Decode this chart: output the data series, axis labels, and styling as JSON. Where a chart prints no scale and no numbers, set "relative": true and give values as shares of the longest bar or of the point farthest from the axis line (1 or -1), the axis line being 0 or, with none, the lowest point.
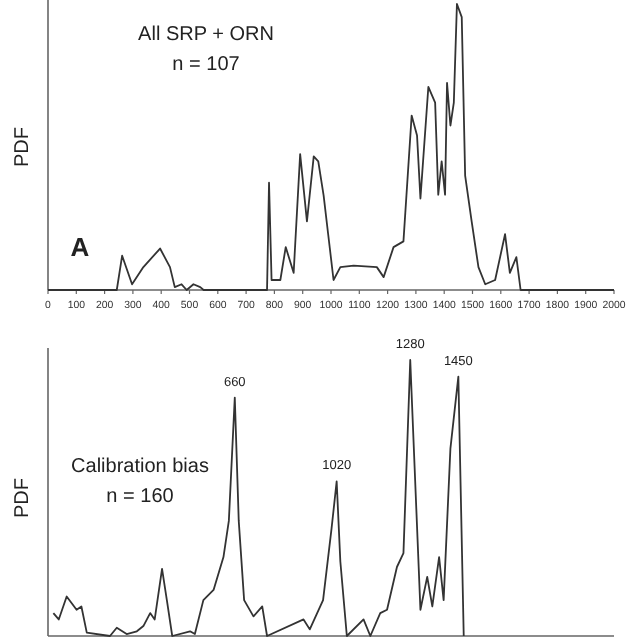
{
  "chart_data": [
    {
      "type": "line",
      "ylabel": "PDF",
      "relative": true,
      "xlim": [
        0,
        2000
      ],
      "xticks": [
        0,
        100,
        200,
        300,
        400,
        500,
        600,
        700,
        800,
        900,
        1000,
        1100,
        1200,
        1300,
        1400,
        1500,
        1600,
        1700,
        1800,
        1900,
        2000
      ],
      "annotations": [
        "All SRP + ORN",
        "n = 107",
        "A"
      ],
      "x": [
        0,
        243,
        262,
        297,
        337,
        396,
        431,
        448,
        472,
        490,
        514,
        538,
        550,
        774,
        781,
        790,
        821,
        840,
        868,
        891,
        915,
        939,
        955,
        974,
        990,
        1009,
        1033,
        1080,
        1162,
        1186,
        1221,
        1256,
        1285,
        1304,
        1316,
        1344,
        1368,
        1379,
        1391,
        1403,
        1410,
        1422,
        1434,
        1445,
        1462,
        1474,
        1497,
        1521,
        1545,
        1580,
        1615,
        1632,
        1655,
        1670,
        2000
      ],
      "series": [
        {
          "color": "#333333",
          "values": [
            0,
            0,
            0.12,
            0.02,
            0.08,
            0.145,
            0.08,
            0.01,
            0.02,
            0,
            0.02,
            0.01,
            0,
            0,
            0.375,
            0.035,
            0.035,
            0.15,
            0.06,
            0.475,
            0.24,
            0.467,
            0.45,
            0.33,
            0.195,
            0.035,
            0.08,
            0.085,
            0.08,
            0.045,
            0.15,
            0.17,
            0.61,
            0.54,
            0.32,
            0.71,
            0.655,
            0.333,
            0.45,
            0.333,
            0.724,
            0.575,
            0.655,
            1.0,
            0.954,
            0.4,
            0.24,
            0.08,
            0.02,
            0.035,
            0.195,
            0.06,
            0.115,
            0,
            0
          ]
        }
      ]
    },
    {
      "type": "line",
      "ylabel": "PDF",
      "relative": true,
      "xlim": [
        0,
        2000
      ],
      "tick_labels": false,
      "annotations": [
        "Calibration bias",
        "n = 160",
        {
          "text": "660",
          "x": 660,
          "y": 0.864
        },
        {
          "text": "1020",
          "x": 1020,
          "y": 0.56
        },
        {
          "text": "1280",
          "x": 1280,
          "y": 1.0
        },
        {
          "text": "1450",
          "x": 1450,
          "y": 0.94
        }
      ],
      "x": [
        19,
        38,
        66,
        101,
        118,
        137,
        219,
        243,
        278,
        314,
        337,
        361,
        377,
        403,
        420,
        439,
        502,
        519,
        549,
        585,
        620,
        639,
        660,
        674,
        693,
        726,
        757,
        774,
        903,
        925,
        972,
        1002,
        1020,
        1033,
        1056,
        1115,
        1139,
        1174,
        1198,
        1233,
        1256,
        1280,
        1316,
        1340,
        1358,
        1382,
        1398,
        1422,
        1450,
        1469
      ],
      "series": [
        {
          "color": "#333333",
          "values": [
            0.083,
            0.06,
            0.143,
            0.095,
            0.107,
            0.012,
            0,
            0.03,
            0.007,
            0.017,
            0.036,
            0.083,
            0.06,
            0.243,
            0.13,
            0,
            0.017,
            0.007,
            0.13,
            0.167,
            0.286,
            0.417,
            0.864,
            0.417,
            0.13,
            0.071,
            0.107,
            0,
            0.06,
            0.024,
            0.13,
            0.39,
            0.56,
            0.27,
            0,
            0.06,
            0,
            0.083,
            0.095,
            0.25,
            0.3,
            1.0,
            0.095,
            0.214,
            0.107,
            0.286,
            0.13,
            0.68,
            0.94,
            0
          ]
        }
      ]
    }
  ]
}
